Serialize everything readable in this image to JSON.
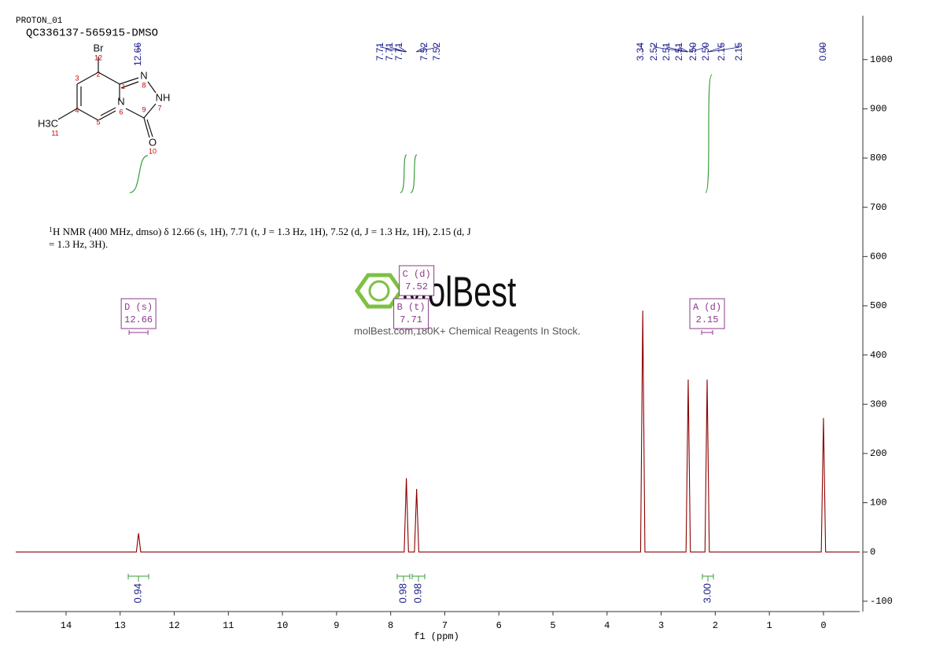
{
  "header": {
    "doc_id": "PROTON_01",
    "sample": "QC336137-565915-DMSO"
  },
  "structure_labels": [
    "Br",
    "12",
    "2",
    "3",
    "1",
    "N",
    "8",
    "NH",
    "7",
    "4",
    "N",
    "6",
    "9",
    "H3C",
    "11",
    "5",
    "O",
    "10"
  ],
  "description": {
    "superscript": "1",
    "line1": "H NMR (400 MHz, dmso) δ 12.66 (s, 1H), 7.71 (t, J = 1.3 Hz, 1H), 7.52 (d, J = 1.3 Hz, 1H), 2.15 (d, J",
    "line2": "= 1.3 Hz, 3H)."
  },
  "watermark": {
    "brand": "MolBest",
    "tagline": "molBest.com,180K+ Chemical Reagents In Stock."
  },
  "chart_data": {
    "type": "line",
    "x_label": "f1 (ppm)",
    "color": "#8b0000",
    "x": [
      14.93,
      12.7,
      12.66,
      12.62,
      7.75,
      7.71,
      7.67,
      7.56,
      7.52,
      7.48,
      3.38,
      3.34,
      3.3,
      2.54,
      2.5,
      2.46,
      2.19,
      2.15,
      2.11,
      0.04,
      0,
      -0.04,
      -0.67
    ],
    "values": [
      0,
      0,
      38,
      0,
      0,
      150,
      0,
      0,
      128,
      0,
      0,
      490,
      0,
      0,
      350,
      0,
      0,
      350,
      0,
      0,
      272,
      0,
      0
    ],
    "xlim": [
      14.93,
      -0.67
    ],
    "xticks": [
      14,
      13,
      12,
      11,
      10,
      9,
      8,
      7,
      6,
      5,
      4,
      3,
      2,
      1,
      0
    ],
    "ylim": [
      -121,
      1089
    ],
    "yticks": [
      -100,
      0,
      100,
      200,
      300,
      400,
      500,
      600,
      700,
      800,
      900,
      1000
    ],
    "peak_labels": [
      "12.66",
      "7.71",
      "7.71",
      "7.71",
      "7.52",
      "7.52",
      "3.34",
      "2.52",
      "2.51",
      "2.51",
      "2.50",
      "2.50",
      "2.15",
      "2.15",
      "0.00"
    ],
    "multiplets": [
      {
        "label": "D (s)",
        "shift": 12.66
      },
      {
        "label": "C (d)",
        "shift": 7.52
      },
      {
        "label": "B (t)",
        "shift": 7.71
      },
      {
        "label": "A (d)",
        "shift": 2.15
      }
    ],
    "integrals": {
      "values": [
        0.94,
        0.98,
        0.98,
        3.0
      ],
      "value_labels": [
        "0.94",
        "0.98",
        "0.98",
        "3.00"
      ]
    }
  }
}
